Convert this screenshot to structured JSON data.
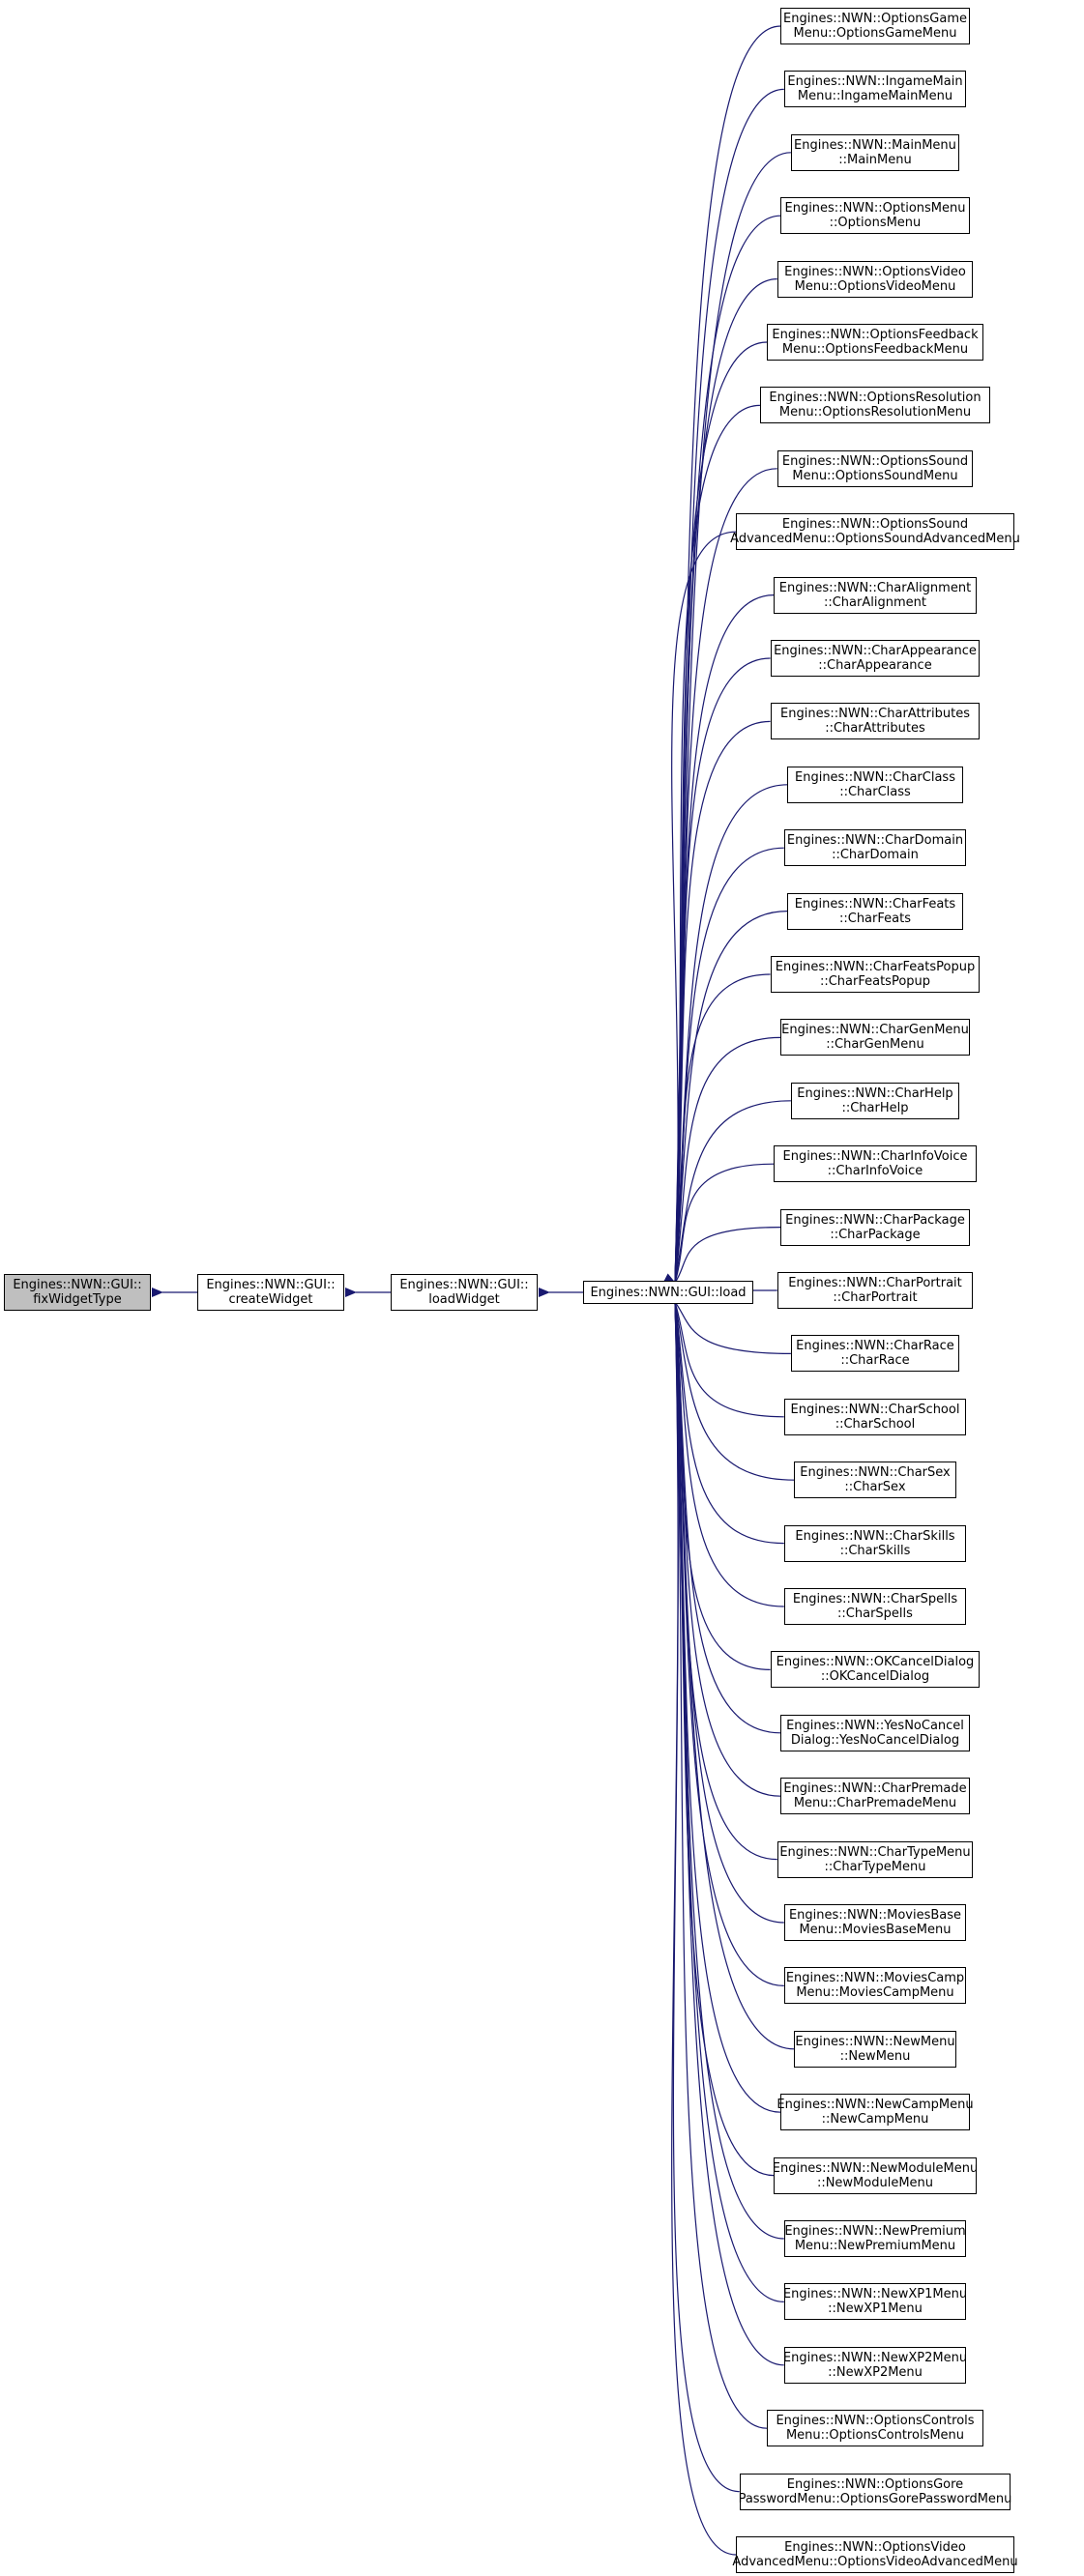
{
  "colors": {
    "edge": "#191970",
    "node_border": "#000000",
    "highlight_fill": "#bfbfbf"
  },
  "nodes": {
    "fix_widget_type": {
      "line1": "Engines::NWN::GUI::",
      "line2": "fixWidgetType"
    },
    "create_widget": {
      "line1": "Engines::NWN::GUI::",
      "line2": "createWidget"
    },
    "load_widget": {
      "line1": "Engines::NWN::GUI::",
      "line2": "loadWidget"
    },
    "load": {
      "line1": "Engines::NWN::GUI::load"
    }
  },
  "callers": [
    {
      "line1": "Engines::NWN::OptionsGame",
      "line2": "Menu::OptionsGameMenu"
    },
    {
      "line1": "Engines::NWN::IngameMain",
      "line2": "Menu::IngameMainMenu"
    },
    {
      "line1": "Engines::NWN::MainMenu",
      "line2": "::MainMenu"
    },
    {
      "line1": "Engines::NWN::OptionsMenu",
      "line2": "::OptionsMenu"
    },
    {
      "line1": "Engines::NWN::OptionsVideo",
      "line2": "Menu::OptionsVideoMenu"
    },
    {
      "line1": "Engines::NWN::OptionsFeedback",
      "line2": "Menu::OptionsFeedbackMenu"
    },
    {
      "line1": "Engines::NWN::OptionsResolution",
      "line2": "Menu::OptionsResolutionMenu"
    },
    {
      "line1": "Engines::NWN::OptionsSound",
      "line2": "Menu::OptionsSoundMenu"
    },
    {
      "line1": "Engines::NWN::OptionsSound",
      "line2": "AdvancedMenu::OptionsSoundAdvancedMenu"
    },
    {
      "line1": "Engines::NWN::CharAlignment",
      "line2": "::CharAlignment"
    },
    {
      "line1": "Engines::NWN::CharAppearance",
      "line2": "::CharAppearance"
    },
    {
      "line1": "Engines::NWN::CharAttributes",
      "line2": "::CharAttributes"
    },
    {
      "line1": "Engines::NWN::CharClass",
      "line2": "::CharClass"
    },
    {
      "line1": "Engines::NWN::CharDomain",
      "line2": "::CharDomain"
    },
    {
      "line1": "Engines::NWN::CharFeats",
      "line2": "::CharFeats"
    },
    {
      "line1": "Engines::NWN::CharFeatsPopup",
      "line2": "::CharFeatsPopup"
    },
    {
      "line1": "Engines::NWN::CharGenMenu",
      "line2": "::CharGenMenu"
    },
    {
      "line1": "Engines::NWN::CharHelp",
      "line2": "::CharHelp"
    },
    {
      "line1": "Engines::NWN::CharInfoVoice",
      "line2": "::CharInfoVoice"
    },
    {
      "line1": "Engines::NWN::CharPackage",
      "line2": "::CharPackage"
    },
    {
      "line1": "Engines::NWN::CharPortrait",
      "line2": "::CharPortrait"
    },
    {
      "line1": "Engines::NWN::CharRace",
      "line2": "::CharRace"
    },
    {
      "line1": "Engines::NWN::CharSchool",
      "line2": "::CharSchool"
    },
    {
      "line1": "Engines::NWN::CharSex",
      "line2": "::CharSex"
    },
    {
      "line1": "Engines::NWN::CharSkills",
      "line2": "::CharSkills"
    },
    {
      "line1": "Engines::NWN::CharSpells",
      "line2": "::CharSpells"
    },
    {
      "line1": "Engines::NWN::OKCancelDialog",
      "line2": "::OKCancelDialog"
    },
    {
      "line1": "Engines::NWN::YesNoCancel",
      "line2": "Dialog::YesNoCancelDialog"
    },
    {
      "line1": "Engines::NWN::CharPremade",
      "line2": "Menu::CharPremadeMenu"
    },
    {
      "line1": "Engines::NWN::CharTypeMenu",
      "line2": "::CharTypeMenu"
    },
    {
      "line1": "Engines::NWN::MoviesBase",
      "line2": "Menu::MoviesBaseMenu"
    },
    {
      "line1": "Engines::NWN::MoviesCamp",
      "line2": "Menu::MoviesCampMenu"
    },
    {
      "line1": "Engines::NWN::NewMenu",
      "line2": "::NewMenu"
    },
    {
      "line1": "Engines::NWN::NewCampMenu",
      "line2": "::NewCampMenu"
    },
    {
      "line1": "Engines::NWN::NewModuleMenu",
      "line2": "::NewModuleMenu"
    },
    {
      "line1": "Engines::NWN::NewPremium",
      "line2": "Menu::NewPremiumMenu"
    },
    {
      "line1": "Engines::NWN::NewXP1Menu",
      "line2": "::NewXP1Menu"
    },
    {
      "line1": "Engines::NWN::NewXP2Menu",
      "line2": "::NewXP2Menu"
    },
    {
      "line1": "Engines::NWN::OptionsControls",
      "line2": "Menu::OptionsControlsMenu"
    },
    {
      "line1": "Engines::NWN::OptionsGore",
      "line2": "PasswordMenu::OptionsGorePasswordMenu"
    },
    {
      "line1": "Engines::NWN::OptionsVideo",
      "line2": "AdvancedMenu::OptionsVideoAdvancedMenu"
    }
  ]
}
